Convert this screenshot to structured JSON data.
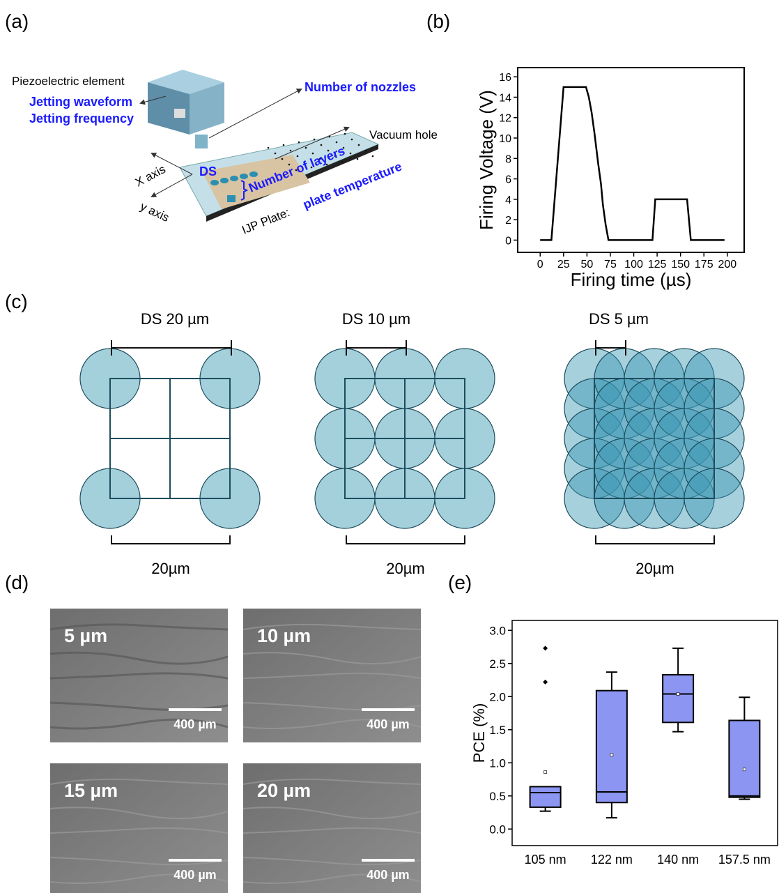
{
  "panel_labels": [
    "(a)",
    "(b)",
    "(c)",
    "(d)",
    "(e)"
  ],
  "diagram_a": {
    "piezo": "Piezoelectric element",
    "waveform": "Jetting waveform",
    "frequency": "Jetting frequency",
    "nozzles": "Number of nozzles",
    "vacuum": "Vacuum hole",
    "layers": "Number of layers",
    "ds": "DS",
    "x_axis": "X axis",
    "y_axis": "y axis",
    "plate": "IJP Plate:",
    "plate_temp": "plate temperature"
  },
  "dot_spacing": [
    {
      "title": "DS 20 µm",
      "width": "20µm"
    },
    {
      "title": "DS 10 µm",
      "width": "20µm"
    },
    {
      "title": "DS 5 µm",
      "width": "20µm"
    }
  ],
  "micrographs": [
    {
      "label": "5 µm",
      "scale": "400 µm"
    },
    {
      "label": "10 µm",
      "scale": "400 µm"
    },
    {
      "label": "15 µm",
      "scale": "400 µm"
    },
    {
      "label": "20 µm",
      "scale": "400 µm"
    }
  ],
  "chart_data": [
    {
      "type": "line",
      "xlabel": "Firing time (µs)",
      "ylabel": "Firing Voltage (V)",
      "color": "#000000",
      "x": [
        0,
        12,
        25,
        49,
        52,
        55,
        58,
        60,
        62,
        65,
        67,
        70,
        73,
        120,
        123,
        157,
        161,
        197
      ],
      "values": [
        0,
        0,
        15,
        15,
        14,
        12.5,
        10.5,
        9,
        7.5,
        5.5,
        3.5,
        1.5,
        0,
        0,
        4,
        4,
        0,
        0
      ],
      "xlim": [
        -24,
        218
      ],
      "xticks": [
        0,
        25,
        50,
        75,
        100,
        125,
        150,
        175,
        200
      ],
      "ylim": [
        -1.2,
        16.9
      ],
      "yticks": [
        0,
        2,
        4,
        6,
        8,
        10,
        12,
        14,
        16
      ]
    },
    {
      "type": "box",
      "ylabel": "PCE (%)",
      "color": "#8c96f2",
      "categories": [
        "105 nm",
        "122 nm",
        "140 nm",
        "157.5 nm"
      ],
      "boxes": [
        {
          "min": 0.27,
          "q1": 0.33,
          "median": 0.55,
          "q3": 0.64,
          "max": 0.64,
          "mean": 0.86,
          "outliers": [
            2.22,
            2.73
          ]
        },
        {
          "min": 0.17,
          "q1": 0.4,
          "median": 0.56,
          "q3": 2.09,
          "max": 2.37,
          "mean": 1.12,
          "outliers": []
        },
        {
          "min": 1.47,
          "q1": 1.61,
          "median": 2.04,
          "q3": 2.33,
          "max": 2.73,
          "mean": 2.04,
          "outliers": []
        },
        {
          "min": 0.45,
          "q1": 0.48,
          "median": 0.5,
          "q3": 1.64,
          "max": 1.99,
          "mean": 0.9,
          "outliers": []
        }
      ],
      "ylim": [
        -0.25,
        3.15
      ],
      "yticks": [
        {
          "value": 0,
          "label": "0.0"
        },
        {
          "value": 0.5,
          "label": "0.5"
        },
        {
          "value": 1,
          "label": "1.0"
        },
        {
          "value": 1.5,
          "label": "1.5"
        },
        {
          "value": 2,
          "label": "2.0"
        },
        {
          "value": 2.5,
          "label": "2.5"
        },
        {
          "value": 3,
          "label": "3.0"
        }
      ]
    }
  ]
}
